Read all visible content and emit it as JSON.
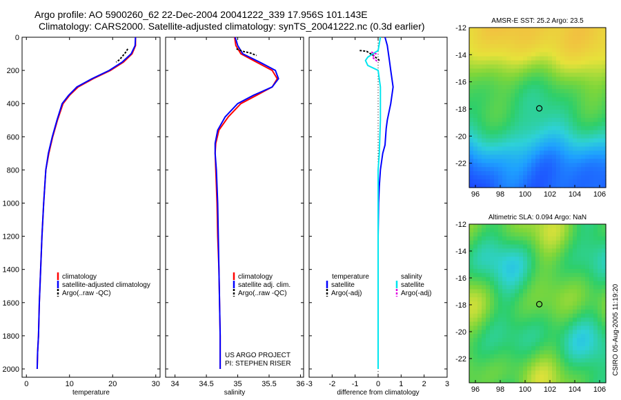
{
  "title_line1": "Argo profile: AO 5900260_62 22-Dec-2004 20041222_339 17.956S 101.143E",
  "title_line2": "Climatology: CARS2000. Satellite-adjusted climatology: synTS_20041222.nc (0.3d earlier)",
  "side_credit": "CSIRO 05-Aug-2005 11:19:20",
  "project_line1": "US ARGO PROJECT",
  "project_line2": "PI: STEPHEN RISER",
  "colors": {
    "climatology": "#ff0000",
    "satellite": "#0000ff",
    "argo": "#000000",
    "satellite_salinity": "#00e5ee",
    "argo_salinity": "#e000e0"
  },
  "chart_data": [
    {
      "id": "temperature",
      "type": "line",
      "xlabel": "temperature",
      "ylabel": "",
      "xlim": [
        -1,
        31
      ],
      "ylim": [
        2050,
        0
      ],
      "xticks": [
        0,
        10,
        20,
        30
      ],
      "yticks": [
        0,
        200,
        400,
        600,
        800,
        1000,
        1200,
        1400,
        1600,
        1800,
        2000
      ],
      "legend": [
        "climatology",
        "satellite-adjusted climatology",
        "Argo(..raw -QC)"
      ],
      "series": [
        {
          "name": "climatology",
          "color": "climatology",
          "x": [
            25.3,
            25.3,
            24.5,
            22.5,
            19.5,
            15.5,
            12,
            10,
            8.5,
            7.2,
            6.1,
            5.2,
            4.5,
            4.0,
            3.6,
            3.3,
            3.0,
            2.8,
            2.6,
            2.5
          ],
          "y": [
            0,
            50,
            100,
            150,
            200,
            250,
            300,
            350,
            400,
            500,
            600,
            700,
            800,
            1000,
            1200,
            1400,
            1600,
            1800,
            1900,
            2000
          ]
        },
        {
          "name": "satellite-adjusted climatology",
          "color": "satellite",
          "x": [
            25.3,
            25.2,
            24.3,
            22.2,
            19.2,
            15.2,
            11.7,
            9.8,
            8.3,
            7.1,
            6.0,
            5.1,
            4.5,
            4.0,
            3.6,
            3.3,
            3.0,
            2.8,
            2.6,
            2.5
          ],
          "y": [
            0,
            50,
            100,
            150,
            200,
            250,
            300,
            350,
            400,
            500,
            600,
            700,
            800,
            1000,
            1200,
            1400,
            1600,
            1800,
            1900,
            2000
          ]
        },
        {
          "name": "Argo(..raw -QC)",
          "color": "argo",
          "dash": true,
          "x": [
            23.5,
            23.2,
            22.4,
            21.6,
            20.8
          ],
          "y": [
            70,
            85,
            110,
            135,
            150
          ]
        }
      ]
    },
    {
      "id": "salinity",
      "type": "line",
      "xlabel": "salinity",
      "xlim": [
        33.85,
        36.05
      ],
      "ylim": [
        2050,
        0
      ],
      "xticks": [
        34,
        34.5,
        35,
        35.5,
        36
      ],
      "legend": [
        "climatology",
        "satellite adj. clim.",
        "Argo(..raw -QC)"
      ],
      "series": [
        {
          "name": "climatology",
          "color": "climatology",
          "x": [
            34.95,
            34.97,
            35.05,
            35.3,
            35.55,
            35.63,
            35.55,
            35.3,
            35.05,
            34.85,
            34.7,
            34.65,
            34.64,
            34.65,
            34.67,
            34.68,
            34.7,
            34.71,
            34.72,
            34.72
          ],
          "y": [
            0,
            50,
            100,
            150,
            200,
            250,
            300,
            350,
            400,
            480,
            560,
            640,
            700,
            800,
            1000,
            1200,
            1400,
            1600,
            1800,
            2000
          ]
        },
        {
          "name": "satellite adj. clim.",
          "color": "satellite",
          "x": [
            34.96,
            35.0,
            35.08,
            35.35,
            35.6,
            35.65,
            35.55,
            35.25,
            35.0,
            34.8,
            34.68,
            34.64,
            34.64,
            34.66,
            34.68,
            34.69,
            34.7,
            34.71,
            34.72,
            34.72
          ],
          "y": [
            0,
            50,
            100,
            150,
            200,
            250,
            300,
            350,
            400,
            480,
            560,
            640,
            700,
            800,
            1000,
            1200,
            1400,
            1600,
            1800,
            2000
          ]
        },
        {
          "name": "Argo(..raw -QC)",
          "color": "argo",
          "dash": true,
          "x": [
            34.98,
            35.08,
            35.2,
            35.3
          ],
          "y": [
            70,
            85,
            95,
            110
          ]
        }
      ]
    },
    {
      "id": "difference",
      "type": "line",
      "xlabel": "difference from climatology",
      "xlim": [
        -3,
        3
      ],
      "ylim": [
        2050,
        0
      ],
      "xticks": [
        -3,
        -2,
        -1,
        0,
        1,
        2,
        3
      ],
      "legend_left": [
        "temperature",
        "satellite",
        "Argo(-adj)"
      ],
      "legend_right": [
        "salinity",
        "satellite",
        "Argo(-adj)"
      ],
      "series": [
        {
          "name": "temperature satellite",
          "color": "satellite",
          "x": [
            0.3,
            0.4,
            0.45,
            0.5,
            0.55,
            0.65,
            0.55,
            0.4,
            0.35,
            0.3,
            0.2,
            0.1,
            0.05,
            0.02,
            0.0,
            0.0,
            0.0
          ],
          "y": [
            0,
            50,
            100,
            150,
            200,
            300,
            400,
            500,
            550,
            650,
            700,
            800,
            900,
            1000,
            1200,
            1600,
            2000
          ]
        },
        {
          "name": "salinity satellite",
          "color": "satellite_salinity",
          "x": [
            0.1,
            0.0,
            -0.45,
            -0.55,
            -0.45,
            0.0,
            0.1,
            0.1,
            0.05,
            0.0,
            0.0,
            0.0,
            0.0
          ],
          "y": [
            0,
            80,
            120,
            140,
            170,
            200,
            300,
            500,
            700,
            800,
            1000,
            1500,
            2000
          ]
        },
        {
          "name": "temperature Argo(-adj)",
          "color": "argo",
          "dash": true,
          "x": [
            -0.8,
            -0.5,
            -0.2,
            0.1
          ],
          "y": [
            80,
            85,
            110,
            145
          ]
        },
        {
          "name": "salinity Argo(-adj)",
          "color": "argo_salinity",
          "dash": true,
          "x": [
            -0.3,
            -0.1,
            -0.25,
            0.0
          ],
          "y": [
            90,
            100,
            120,
            150
          ]
        }
      ]
    },
    {
      "id": "sst_map",
      "type": "heatmap",
      "title": "AMSR-E SST: 25.2 Argo: 23.5",
      "xlim": [
        95.5,
        106.5
      ],
      "ylim": [
        -23.8,
        -12
      ],
      "xticks": [
        96,
        98,
        100,
        102,
        104,
        106
      ],
      "yticks": [
        -12,
        -14,
        -16,
        -18,
        -20,
        -22
      ],
      "point": {
        "lon": 101.143,
        "lat": -17.956
      }
    },
    {
      "id": "sla_map",
      "type": "heatmap",
      "title": "Altimetric SLA: 0.094 Argo: NaN",
      "xlim": [
        95.5,
        106.5
      ],
      "ylim": [
        -23.8,
        -12
      ],
      "xticks": [
        96,
        98,
        100,
        102,
        104,
        106
      ],
      "yticks": [
        -12,
        -14,
        -16,
        -18,
        -20,
        -22
      ],
      "point": {
        "lon": 101.143,
        "lat": -17.956
      }
    }
  ]
}
